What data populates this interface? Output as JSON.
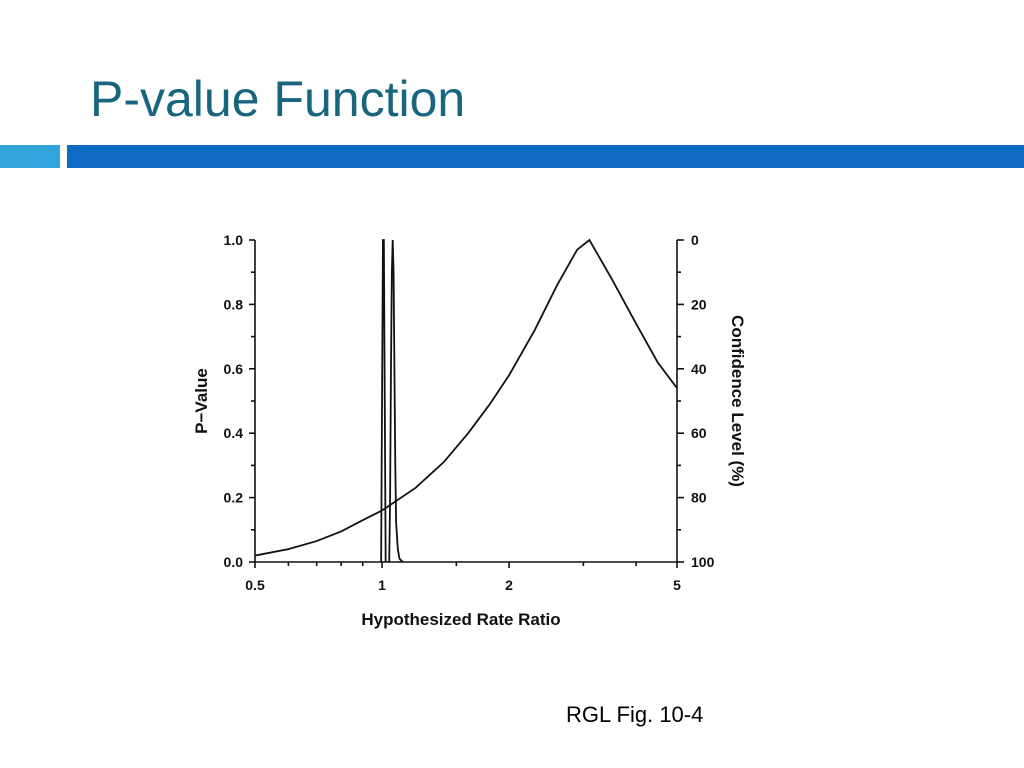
{
  "slide": {
    "title": "P-value Function",
    "caption": "RGL Fig. 10-4",
    "accent_color": "#17657e",
    "band_colors": [
      "#32a4dc",
      "#0f6bc2"
    ]
  },
  "chart_data": {
    "type": "line",
    "title": "",
    "xlabel": "Hypothesized Rate Ratio",
    "ylabel": "P−Value",
    "ylabel_right": "Confidence Level (%)",
    "x_scale": "log",
    "xlim": [
      0.5,
      5
    ],
    "ylim": [
      0,
      1
    ],
    "x_tick_labels": [
      "0.5",
      "1",
      "2",
      "5"
    ],
    "y_tick_labels": [
      "0.0",
      "0.2",
      "0.4",
      "0.6",
      "0.8",
      "1.0"
    ],
    "y_right_tick_labels": [
      "100",
      "80",
      "60",
      "40",
      "20",
      "0"
    ],
    "grid": false,
    "series": [
      {
        "x": [
          0.5,
          0.6,
          0.7,
          0.8,
          0.9,
          1.0,
          1.2,
          1.4,
          1.6,
          1.8,
          2.0,
          2.3,
          2.6,
          2.9,
          3.1,
          3.5,
          4.0,
          4.5,
          5.0
        ],
        "y": [
          0.02,
          0.04,
          0.065,
          0.095,
          0.13,
          0.16,
          0.23,
          0.31,
          0.4,
          0.49,
          0.58,
          0.72,
          0.86,
          0.97,
          1.0,
          0.88,
          0.74,
          0.62,
          0.54
        ]
      },
      {
        "x": [
          0.995,
          1.0,
          1.005,
          1.01,
          1.015,
          1.02
        ],
        "y": [
          0.0,
          0.5,
          1.0,
          1.0,
          0.5,
          0.0
        ]
      },
      {
        "x": [
          1.04,
          1.045,
          1.05,
          1.055,
          1.06,
          1.065,
          1.07,
          1.075,
          1.08,
          1.09,
          1.1,
          1.12
        ],
        "y": [
          0.0,
          0.2,
          0.6,
          0.9,
          1.0,
          0.9,
          0.6,
          0.3,
          0.12,
          0.04,
          0.01,
          0.0
        ]
      }
    ]
  }
}
